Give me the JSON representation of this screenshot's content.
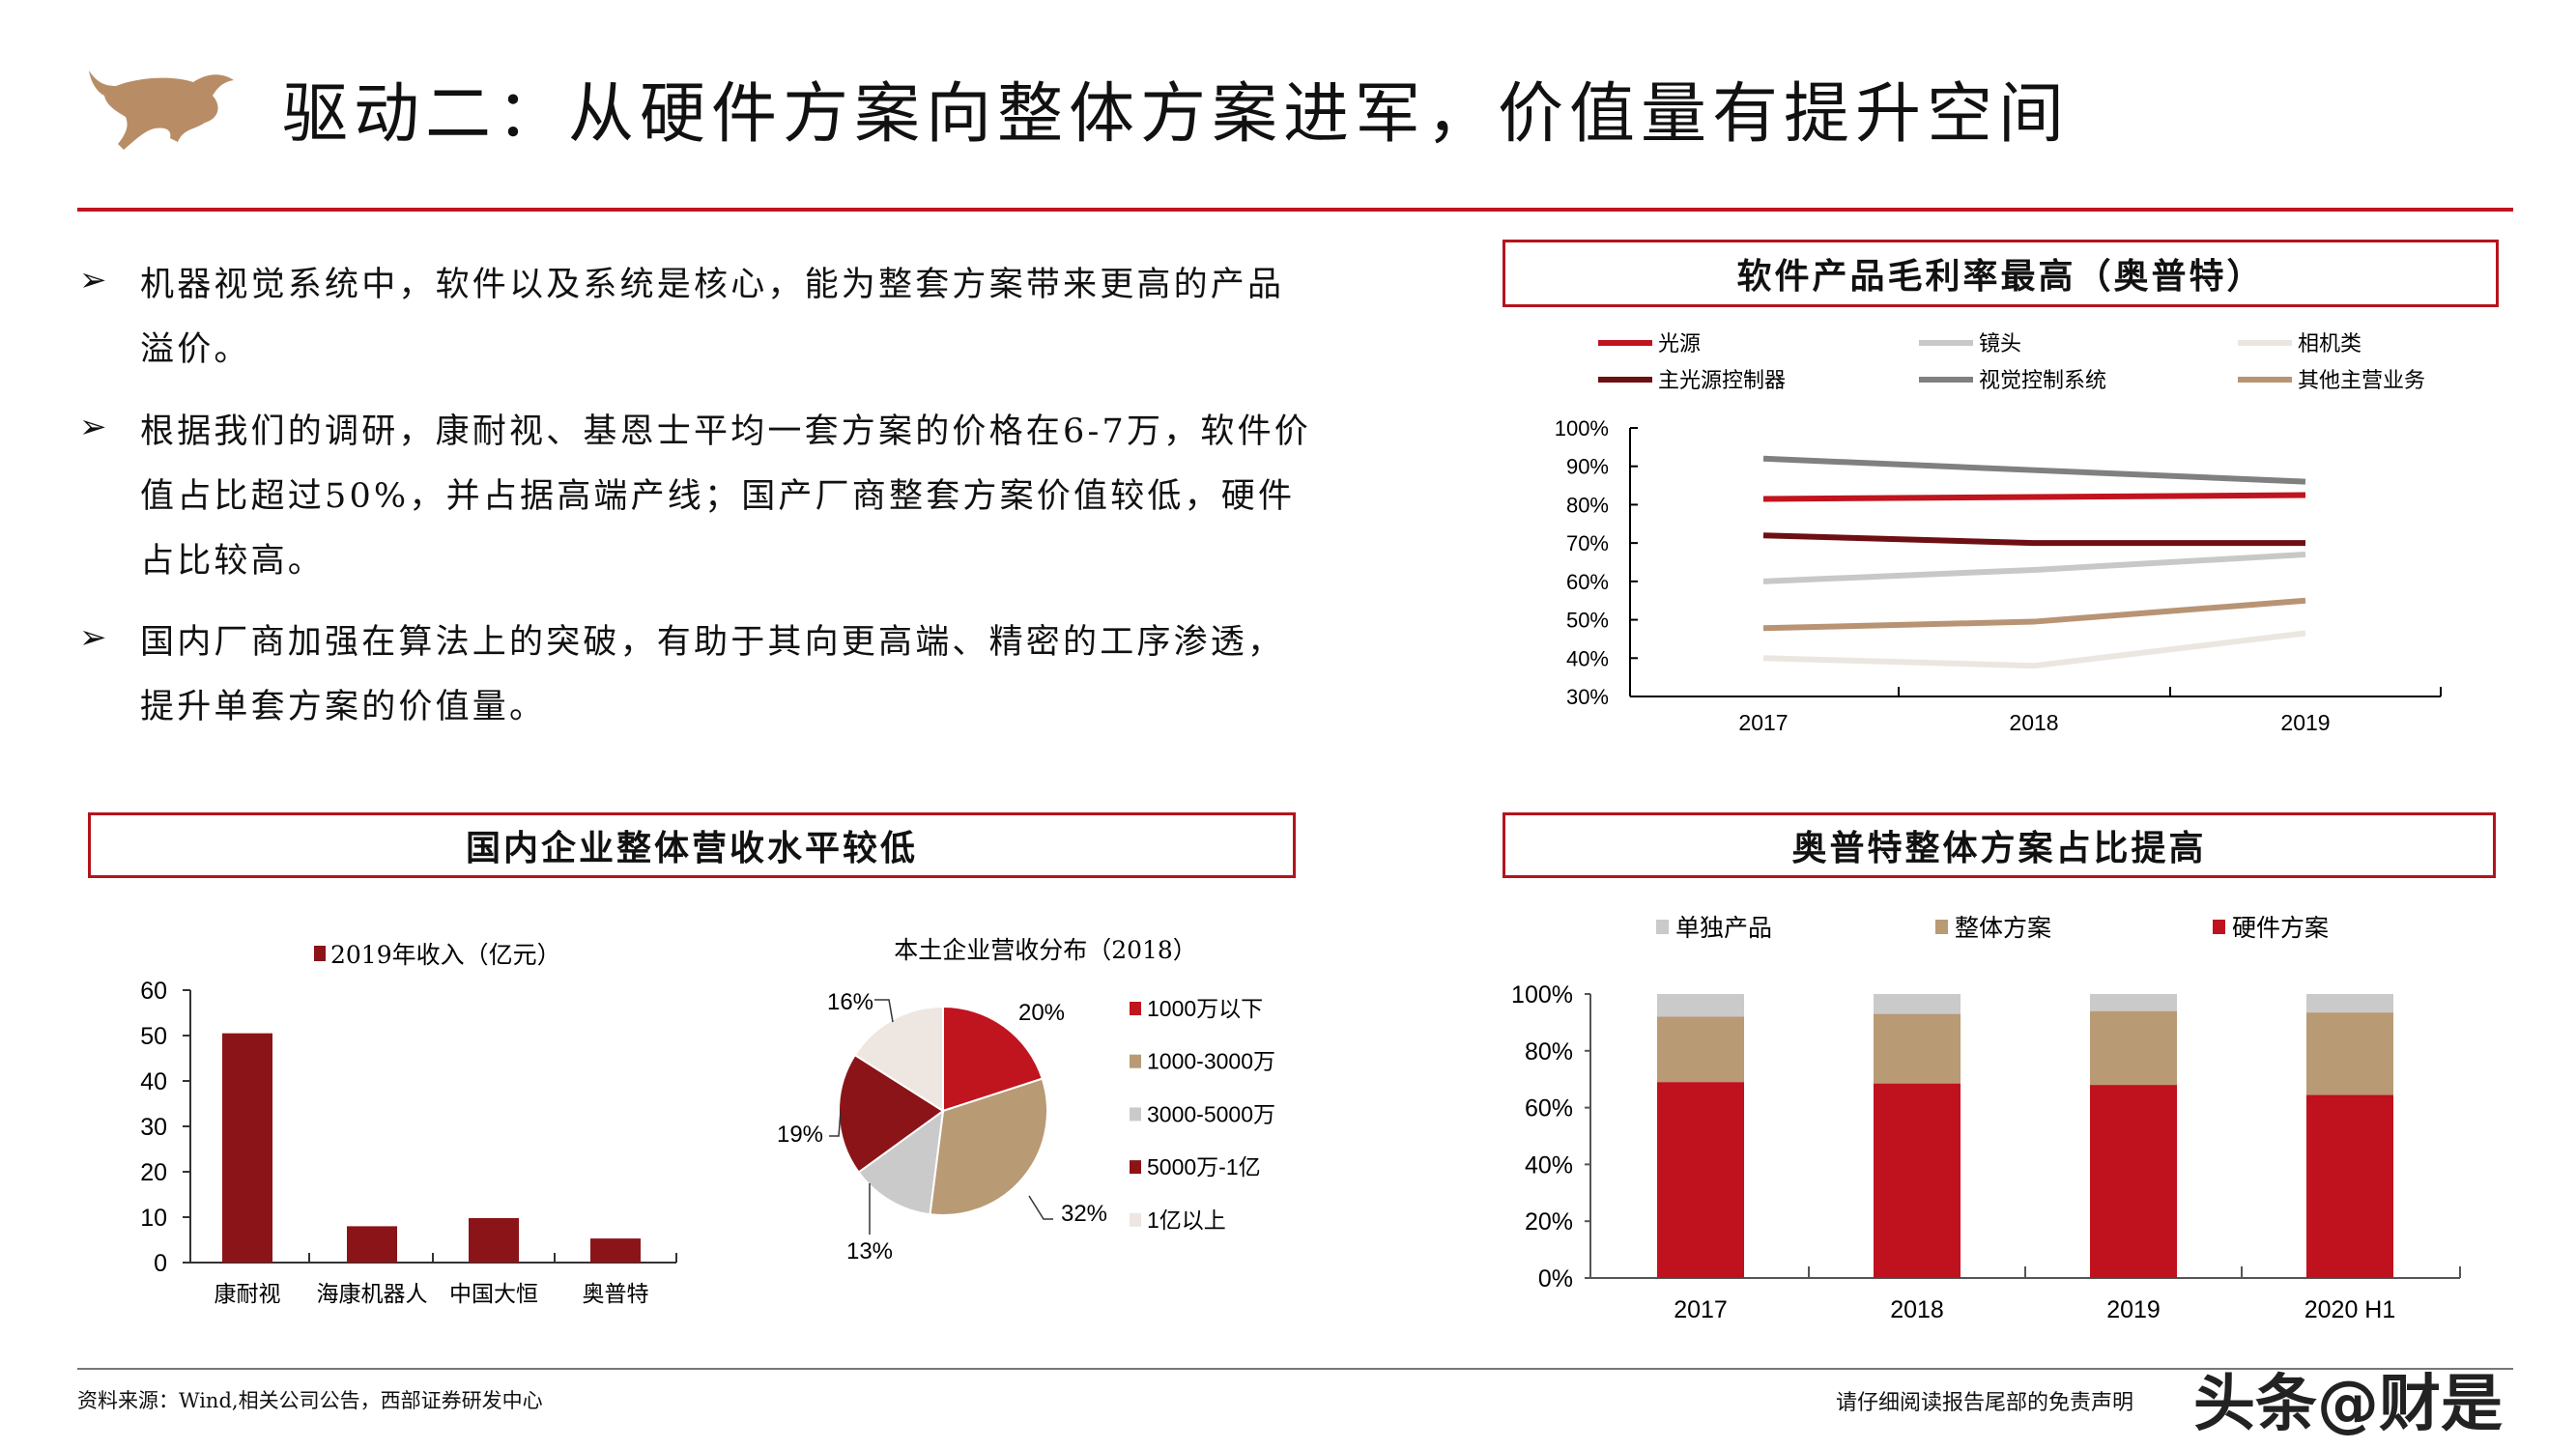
{
  "header": {
    "title": "驱动二：从硬件方案向整体方案进军，价值量有提升空间",
    "logo": "bull-logo"
  },
  "bullets": [
    {
      "text": "机器视觉系统中，软件以及系统是核心，能为整套方案带来更高的产品溢价。"
    },
    {
      "text": "根据我们的调研，康耐视、基恩士平均一套方案的价格在6-7万，软件价值占比超过50%，并占据高端产线；国产厂商整套方案价值较低，硬件占比较高。"
    },
    {
      "text": "国内厂商加强在算法上的突破，有助于其向更高端、精密的工序渗透，提升单套方案的价值量。"
    }
  ],
  "bullet_marker": "➢",
  "panels": {
    "top_right_title": "软件产品毛利率最高（奥普特）",
    "bottom_left_title": "国内企业整体营收水平较低",
    "bottom_right_title": "奥普特整体方案占比提高"
  },
  "chart_data": [
    {
      "type": "line",
      "categories": [
        "2017",
        "2018",
        "2019"
      ],
      "ylim": [
        0.3,
        1.0
      ],
      "yticks": [
        "30%",
        "40%",
        "50%",
        "60%",
        "70%",
        "80%",
        "90%",
        "100%"
      ],
      "legend": "top",
      "series": [
        {
          "name": "光源",
          "color": "#c0141e",
          "values": [
            0.815,
            0.82,
            0.825
          ]
        },
        {
          "name": "镜头",
          "color": "#c8c8c8",
          "values": [
            0.6,
            0.63,
            0.67
          ]
        },
        {
          "name": "相机类",
          "color": "#ece6e0",
          "values": [
            0.4,
            0.38,
            0.465
          ]
        },
        {
          "name": "主光源控制器",
          "color": "#6e0f14",
          "values": [
            0.72,
            0.7,
            0.7
          ]
        },
        {
          "name": "视觉控制系统",
          "color": "#808080",
          "values": [
            0.92,
            0.89,
            0.86
          ]
        },
        {
          "name": "其他主营业务",
          "color": "#b89474",
          "values": [
            0.478,
            0.495,
            0.55
          ]
        }
      ]
    },
    {
      "type": "bar",
      "categories": [
        "康耐视",
        "海康机器人",
        "中国大恒",
        "奥普特"
      ],
      "series": [
        {
          "name": "2019年收入（亿元）",
          "color": "#8b1418",
          "values": [
            50.5,
            8,
            9.8,
            5.3
          ]
        }
      ],
      "ylim": [
        0,
        60
      ],
      "yticks": [
        "0",
        "10",
        "20",
        "30",
        "40",
        "50",
        "60"
      ],
      "legend": "top"
    },
    {
      "type": "pie",
      "title": "本土企业营收分布（2018）",
      "legend": "right",
      "slices": [
        {
          "name": "1000万以下",
          "value": 20,
          "label": "20%",
          "color": "#c0141e"
        },
        {
          "name": "1000-3000万",
          "value": 32,
          "label": "32%",
          "color": "#b89a74"
        },
        {
          "name": "3000-5000万",
          "value": 13,
          "label": "13%",
          "color": "#cacaca"
        },
        {
          "name": "5000万-1亿",
          "value": 19,
          "label": "19%",
          "color": "#8b1418"
        },
        {
          "name": "1亿以上",
          "value": 16,
          "label": "16%",
          "color": "#eee6e0"
        }
      ]
    },
    {
      "type": "bar",
      "stacked": true,
      "categories": [
        "2017",
        "2018",
        "2019",
        "2020 H1"
      ],
      "ylim": [
        0,
        1
      ],
      "yticks": [
        "0%",
        "20%",
        "40%",
        "60%",
        "80%",
        "100%"
      ],
      "legend": "top",
      "series": [
        {
          "name": "单独产品",
          "color": "#cacaca",
          "values": [
            0.08,
            0.07,
            0.06,
            0.065
          ]
        },
        {
          "name": "整体方案",
          "color": "#b89a74",
          "values": [
            0.23,
            0.245,
            0.26,
            0.29
          ]
        },
        {
          "name": "硬件方案",
          "color": "#c0111e",
          "values": [
            0.69,
            0.685,
            0.68,
            0.645
          ]
        }
      ]
    }
  ],
  "footer": {
    "source": "资料来源：Wind,相关公司公告，西部证券研发中心",
    "disclaimer": "请仔细阅读报告尾部的免责声明",
    "watermark": "头条@财是"
  }
}
